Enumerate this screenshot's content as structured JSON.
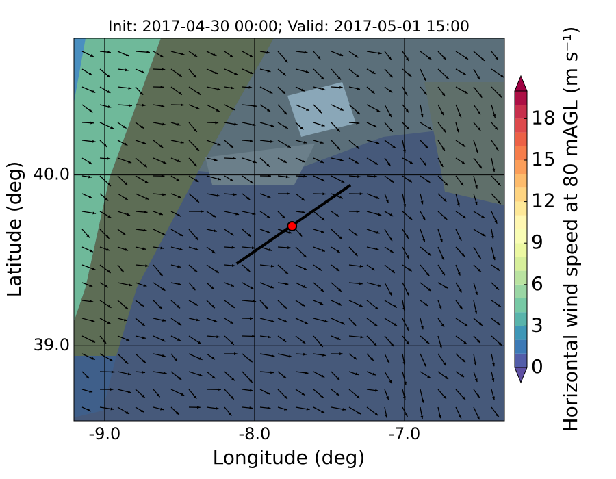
{
  "chart_data": {
    "type": "wind-map",
    "title": "Init: 2017-04-30 00:00; Valid: 2017-05-01 15:00",
    "xlabel": "Longitude (deg)",
    "ylabel": "Latitude (deg)",
    "xlim": [
      -9.205,
      -6.333
    ],
    "ylim": [
      38.56,
      40.8
    ],
    "xticks": [
      {
        "value": -9,
        "label": "-9.0"
      },
      {
        "value": -8,
        "label": "-8.0"
      },
      {
        "value": -7,
        "label": "-7.0"
      }
    ],
    "yticks": [
      {
        "value": 39,
        "label": "39.0"
      },
      {
        "value": 40,
        "label": "40.0"
      }
    ],
    "grid": true,
    "point": {
      "x": -7.75,
      "y": 39.7,
      "color": "#ff0000"
    },
    "transect": {
      "x": [
        -8.12,
        -7.36
      ],
      "y": [
        39.48,
        39.94
      ],
      "color": "#000000"
    },
    "colorbar": {
      "label": "Horizontal wind speed at 80 mAGL (m s⁻¹)",
      "lim": [
        0,
        20
      ],
      "ticks": [
        0,
        3,
        6,
        9,
        12,
        15,
        18
      ],
      "colors": [
        "#5e4fa2",
        "#3288bd",
        "#66c2a5",
        "#abdda4",
        "#e6f598",
        "#ffffbf",
        "#fee08b",
        "#fdae61",
        "#f46d43",
        "#d53e4f",
        "#9e0142"
      ]
    }
  }
}
